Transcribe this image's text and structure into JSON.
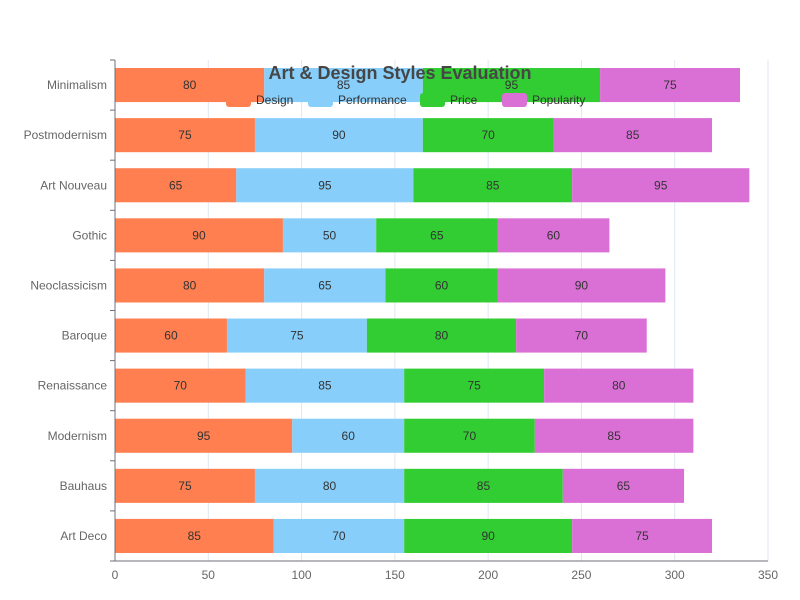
{
  "chart_data": {
    "type": "bar",
    "orientation": "horizontal",
    "stacked": true,
    "title": "Art & Design Styles Evaluation",
    "categories": [
      "Art Deco",
      "Bauhaus",
      "Modernism",
      "Renaissance",
      "Baroque",
      "Neoclassicism",
      "Gothic",
      "Art Nouveau",
      "Postmodernism",
      "Minimalism"
    ],
    "series": [
      {
        "name": "Design",
        "color": "#ff7f50",
        "values": [
          85,
          75,
          95,
          70,
          60,
          80,
          90,
          65,
          75,
          80
        ]
      },
      {
        "name": "Performance",
        "color": "#87cefa",
        "values": [
          70,
          80,
          60,
          85,
          75,
          65,
          50,
          95,
          90,
          85
        ]
      },
      {
        "name": "Price",
        "color": "#32cd32",
        "values": [
          90,
          85,
          70,
          75,
          80,
          60,
          65,
          85,
          70,
          95
        ]
      },
      {
        "name": "Popularity",
        "color": "#da70d6",
        "values": [
          75,
          65,
          85,
          80,
          70,
          90,
          60,
          95,
          85,
          75
        ]
      }
    ],
    "xlim": [
      0,
      350
    ],
    "xticks": [
      0,
      50,
      100,
      150,
      200,
      250,
      300,
      350
    ],
    "xlabel": "",
    "ylabel": "",
    "grid": true,
    "legend_position": "top",
    "show_value_labels": true
  }
}
